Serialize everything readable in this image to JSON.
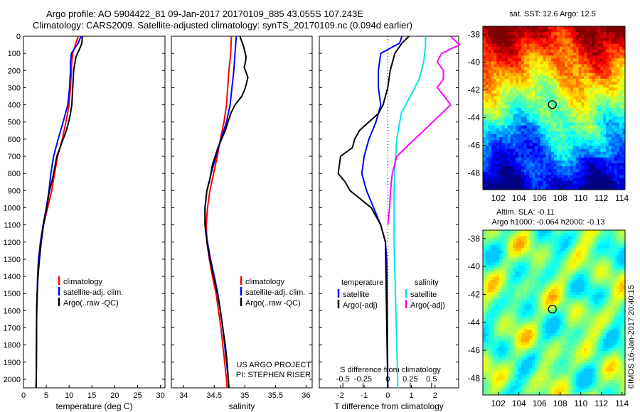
{
  "header": {
    "line1": "Argo profile: AO 5904422_81 09-Jan-2017 20170109_885 43.055S 107.243E",
    "line2": "Climatology: CARS2009. Satellite-adjusted climatology: synTS_20170109.nc (0.094d earlier)"
  },
  "colors": {
    "climatology": "#ff0000",
    "satellite": "#0000ff",
    "argo": "#000000",
    "sal_satellite": "#00e5ee",
    "sal_argo": "#ff00ff"
  },
  "chart_data": [
    {
      "type": "line",
      "id": "temperature-profile",
      "xlabel": "temperature (deg C)",
      "xlim": [
        0,
        31
      ],
      "ylim": [
        2050,
        0
      ],
      "xticks": [
        "0",
        "5",
        "10",
        "15",
        "20",
        "25",
        "30"
      ],
      "yticks": [
        "0",
        "100",
        "200",
        "300",
        "400",
        "500",
        "600",
        "700",
        "800",
        "900",
        "1000",
        "1100",
        "1200",
        "1300",
        "1400",
        "1500",
        "1600",
        "1700",
        "1800",
        "1900",
        "2000"
      ],
      "legend": [
        "climatology",
        "satellite-adj. clim.",
        "Argo(..raw -QC)"
      ],
      "series": [
        {
          "name": "climatology",
          "color": "red",
          "x": [
            12.0,
            11.5,
            10.8,
            10.6,
            10.5,
            10.3,
            10.0,
            9.3,
            8.5,
            7.5,
            6.8,
            6.2,
            5.3,
            4.4,
            3.8,
            3.3,
            3.1,
            3.0,
            2.9,
            2.85,
            2.8,
            2.75
          ],
          "y": [
            0,
            40,
            100,
            150,
            200,
            300,
            400,
            500,
            600,
            700,
            800,
            900,
            1000,
            1100,
            1200,
            1300,
            1400,
            1500,
            1600,
            1800,
            2000,
            2050
          ]
        },
        {
          "name": "satellite-adj. clim.",
          "color": "blue",
          "x": [
            12.6,
            12.0,
            10.5,
            10.3,
            10.3,
            10.1,
            9.7,
            8.7,
            7.6,
            6.6,
            6.0,
            5.6,
            5.0,
            4.3,
            3.7,
            3.3,
            3.1,
            3.0,
            2.9,
            2.85,
            2.8,
            2.75
          ],
          "y": [
            0,
            40,
            100,
            150,
            200,
            300,
            400,
            500,
            600,
            700,
            800,
            900,
            1000,
            1100,
            1200,
            1300,
            1400,
            1500,
            1600,
            1800,
            2000,
            2050
          ]
        },
        {
          "name": "Argo(..raw -QC)",
          "color": "black",
          "x": [
            12.9,
            12.8,
            12.2,
            11.5,
            11.0,
            10.8,
            10.6,
            10.3,
            9.9,
            9.4,
            8.7,
            8.0,
            7.3,
            6.6,
            6.2,
            5.7,
            5.1,
            4.4,
            3.9,
            3.5,
            3.2,
            3.0,
            2.9,
            2.85,
            2.8,
            2.75
          ],
          "y": [
            0,
            40,
            80,
            120,
            200,
            300,
            400,
            450,
            500,
            550,
            600,
            650,
            700,
            800,
            850,
            900,
            1000,
            1100,
            1200,
            1300,
            1400,
            1500,
            1600,
            1800,
            2000,
            2050
          ]
        }
      ]
    },
    {
      "type": "line",
      "id": "salinity-profile",
      "xlabel": "salinity",
      "xlim": [
        33.8,
        36.1
      ],
      "ylim": [
        2050,
        0
      ],
      "xticks": [
        "34",
        "34.5",
        "35",
        "35.5",
        "36"
      ],
      "legend": [
        "climatology",
        "satellite-adj. clim.",
        "Argo(..raw -QC)"
      ],
      "annotation": [
        "US ARGO PROJECT",
        "PI: STEPHEN RISER"
      ],
      "series": [
        {
          "name": "climatology",
          "color": "red",
          "x": [
            34.78,
            34.77,
            34.74,
            34.72,
            34.7,
            34.66,
            34.6,
            34.55,
            34.49,
            34.43,
            34.39,
            34.37,
            34.38,
            34.42,
            34.47,
            34.53,
            34.57,
            34.61,
            34.64,
            34.67,
            34.7,
            34.71
          ],
          "y": [
            0,
            100,
            200,
            300,
            400,
            500,
            600,
            700,
            800,
            900,
            1000,
            1100,
            1200,
            1300,
            1400,
            1500,
            1600,
            1700,
            1800,
            1900,
            2000,
            2050
          ]
        },
        {
          "name": "satellite-adj. clim.",
          "color": "blue",
          "x": [
            34.86,
            34.84,
            34.82,
            34.79,
            34.76,
            34.7,
            34.61,
            34.53,
            34.45,
            34.38,
            34.35,
            34.35,
            34.39,
            34.44,
            34.5,
            34.56,
            34.6,
            34.64,
            34.67,
            34.7,
            34.73,
            34.74
          ],
          "y": [
            0,
            100,
            200,
            300,
            400,
            500,
            600,
            700,
            800,
            900,
            1000,
            1100,
            1200,
            1300,
            1400,
            1500,
            1600,
            1700,
            1800,
            1900,
            2000,
            2050
          ]
        },
        {
          "name": "Argo(..raw -QC)",
          "color": "black",
          "x": [
            34.92,
            34.95,
            34.98,
            35.0,
            35.02,
            35.01,
            34.99,
            35.02,
            35.05,
            35.03,
            35.0,
            34.95,
            34.84,
            34.77,
            34.68,
            34.56,
            34.47,
            34.42,
            34.38,
            34.35,
            34.35,
            34.38,
            34.43,
            34.49,
            34.55,
            34.6,
            34.64,
            34.68,
            34.71,
            34.73,
            34.74
          ],
          "y": [
            0,
            30,
            60,
            90,
            120,
            150,
            180,
            210,
            240,
            270,
            310,
            350,
            400,
            450,
            550,
            650,
            750,
            850,
            900,
            1000,
            1100,
            1200,
            1300,
            1400,
            1500,
            1600,
            1700,
            1800,
            1900,
            2000,
            2050
          ]
        }
      ]
    },
    {
      "type": "line",
      "id": "difference-profile",
      "xlabel": "T difference from climatology",
      "top_label": "S difference from climatology",
      "xlim": [
        -2.9,
        3.0
      ],
      "ylim": [
        2050,
        0
      ],
      "xticks": [
        "-2",
        "-1",
        "0",
        "1",
        "2"
      ],
      "top_ticks": [
        "-0.5",
        "-0.25",
        "0",
        "0.25",
        "0.5"
      ],
      "legend": {
        "temperature_title": "temperature",
        "salinity_title": "salinity",
        "entries": [
          "satellite",
          "Argo(-adj)",
          "satellite",
          "Argo(-adj)"
        ]
      },
      "series": [
        {
          "name": "T satellite",
          "color": "blue",
          "x": [
            0.6,
            0.5,
            -0.3,
            -0.4,
            -0.4,
            -0.3,
            -0.5,
            -0.8,
            -1.0,
            -1.1,
            -0.9,
            -0.6,
            -0.3,
            -0.1,
            -0.05,
            -0.03,
            -0.02,
            -0.01,
            0
          ],
          "y": [
            0,
            40,
            100,
            200,
            300,
            400,
            500,
            600,
            700,
            800,
            900,
            1000,
            1100,
            1200,
            1300,
            1400,
            1600,
            1800,
            2050
          ]
        },
        {
          "name": "T Argo(-adj)",
          "color": "black",
          "x": [
            0.9,
            0.6,
            0.3,
            0.1,
            0.0,
            -0.1,
            -0.2,
            -0.4,
            -0.8,
            -1.2,
            -1.4,
            -1.5,
            -2.0,
            -2.1,
            -1.8,
            -1.6,
            -0.7,
            -0.3,
            -0.1,
            0
          ],
          "y": [
            0,
            40,
            100,
            200,
            300,
            350,
            400,
            450,
            500,
            550,
            600,
            650,
            700,
            800,
            850,
            900,
            1000,
            1100,
            1200,
            2050
          ]
        },
        {
          "name": "S satellite",
          "color": "cyan",
          "x": [
            0.42,
            0.42,
            0.4,
            0.35,
            0.25,
            0.15,
            0.1,
            0.08,
            0.07,
            0.07,
            0.07,
            0.08,
            0.09,
            0.1,
            0.11,
            0.11
          ],
          "y": [
            0,
            60,
            150,
            250,
            350,
            450,
            600,
            750,
            900,
            1050,
            1200,
            1400,
            1600,
            1800,
            2000,
            2050
          ]
        },
        {
          "name": "S Argo(-adj)",
          "color": "magenta",
          "x": [
            0.7,
            0.8,
            0.6,
            0.55,
            0.62,
            0.62,
            0.55,
            0.63,
            0.7,
            0.5,
            0.3,
            0.1,
            0.05,
            0.03,
            0.02,
            0.0
          ],
          "y": [
            0,
            50,
            100,
            150,
            200,
            250,
            300,
            350,
            400,
            500,
            600,
            700,
            800,
            900,
            1000,
            1100
          ]
        }
      ]
    },
    {
      "type": "heatmap",
      "id": "sst-map",
      "title": "sat. SST: 12.6 Argo: 12.5",
      "xlim": [
        100.5,
        114.3
      ],
      "ylim": [
        -49.2,
        -37.4
      ],
      "xticks": [
        "102",
        "104",
        "106",
        "108",
        "110",
        "112",
        "114"
      ],
      "yticks": [
        "-38",
        "-40",
        "-42",
        "-44",
        "-46",
        "-48"
      ],
      "marker": {
        "lon": 107.243,
        "lat": -43.055
      }
    },
    {
      "type": "heatmap",
      "id": "sla-map",
      "title_lines": [
        "Altim. SLA: -0.11",
        "Argo h1000: -0.064 h2000: -0.13"
      ],
      "xlim": [
        100.5,
        114.3
      ],
      "ylim": [
        -49.2,
        -37.4
      ],
      "xticks": [
        "102",
        "104",
        "106",
        "108",
        "110",
        "112",
        "114"
      ],
      "yticks": [
        "-38",
        "-40",
        "-42",
        "-44",
        "-46",
        "-48"
      ],
      "marker": {
        "lon": 107.243,
        "lat": -43.055
      }
    }
  ],
  "credit": "©IMOS 16-Jan-2017 20:40:15"
}
